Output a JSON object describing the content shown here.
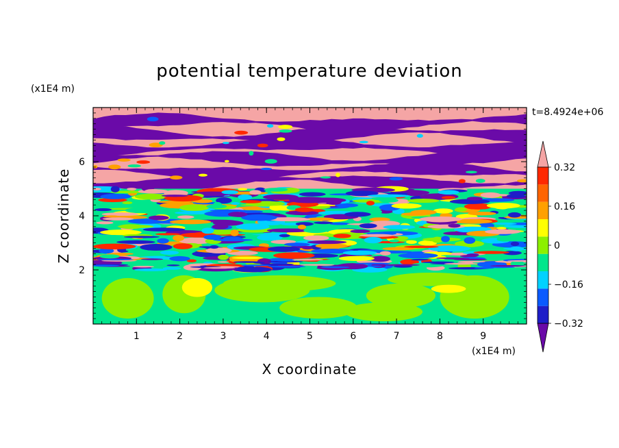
{
  "chart_data": {
    "type": "heatmap",
    "title": "potential temperature deviation",
    "xlabel": "X coordinate",
    "ylabel": "Z coordinate",
    "x_unit": "(x1E4 m)",
    "y_unit": "(x1E4 m)",
    "xlim": [
      0,
      10
    ],
    "ylim": [
      0,
      8
    ],
    "x_ticks": [
      "1",
      "2",
      "3",
      "4",
      "5",
      "6",
      "7",
      "8",
      "9"
    ],
    "y_ticks": [
      "2",
      "4",
      "6"
    ],
    "time_label": "t=8.4924e+06",
    "colorbar": {
      "tick_labels": [
        "0.32",
        "0.16",
        "0",
        "-0.16",
        "-0.32"
      ],
      "tick_values": [
        0.32,
        0.16,
        0,
        -0.16,
        -0.32
      ],
      "levels": [
        -0.4,
        -0.32,
        -0.24,
        -0.16,
        -0.08,
        0,
        0.08,
        0.16,
        0.24,
        0.32,
        0.4
      ],
      "colors": [
        "#6a0aa8",
        "#1e1ec8",
        "#0a5aff",
        "#00d2ff",
        "#00e68c",
        "#8cf000",
        "#ffff00",
        "#ffa000",
        "#ff6400",
        "#ff2800",
        "#f5a5a5"
      ],
      "extend": "both"
    },
    "layers": [
      {
        "zmin": 0,
        "zmax": 2,
        "pattern": "smooth",
        "dominant": [
          "#00e68c",
          "#8cf000"
        ]
      },
      {
        "zmin": 2,
        "zmax": 5,
        "pattern": "turbulent",
        "dominant": [
          "#1e1ec8",
          "#0a5aff",
          "#00d2ff",
          "#00e68c",
          "#ffff00",
          "#ffa000",
          "#ff2800"
        ]
      },
      {
        "zmin": 5,
        "zmax": 8,
        "pattern": "banded",
        "dominant": [
          "#6a0aa8",
          "#f5a5a5"
        ]
      }
    ]
  }
}
